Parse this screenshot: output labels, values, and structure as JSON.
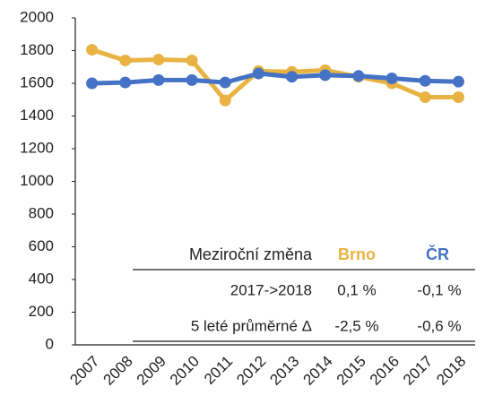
{
  "chart_data": {
    "type": "line",
    "categories": [
      "2007",
      "2008",
      "2009",
      "2010",
      "2011",
      "2012",
      "2013",
      "2014",
      "2015",
      "2016",
      "2017",
      "2018"
    ],
    "series": [
      {
        "name": "Brno",
        "color": "#e8b342",
        "values": [
          1805,
          1740,
          1745,
          1740,
          1495,
          1675,
          1670,
          1680,
          1640,
          1600,
          1515,
          1515
        ]
      },
      {
        "name": "ČR",
        "color": "#4472c4",
        "values": [
          1600,
          1605,
          1620,
          1620,
          1605,
          1660,
          1640,
          1650,
          1645,
          1630,
          1615,
          1610
        ]
      }
    ],
    "ylim": [
      0,
      2000
    ],
    "yticks": [
      0,
      200,
      400,
      600,
      800,
      1000,
      1200,
      1400,
      1600,
      1800,
      2000
    ],
    "grid": false,
    "table": {
      "header": [
        "Meziroční změna",
        "Brno",
        "ČR"
      ],
      "rows": [
        [
          "2017->2018",
          "0,1 %",
          "-0,1 %"
        ],
        [
          "5 leté průměrné Δ",
          "-2,5 %",
          "-0,6 %"
        ]
      ]
    }
  }
}
